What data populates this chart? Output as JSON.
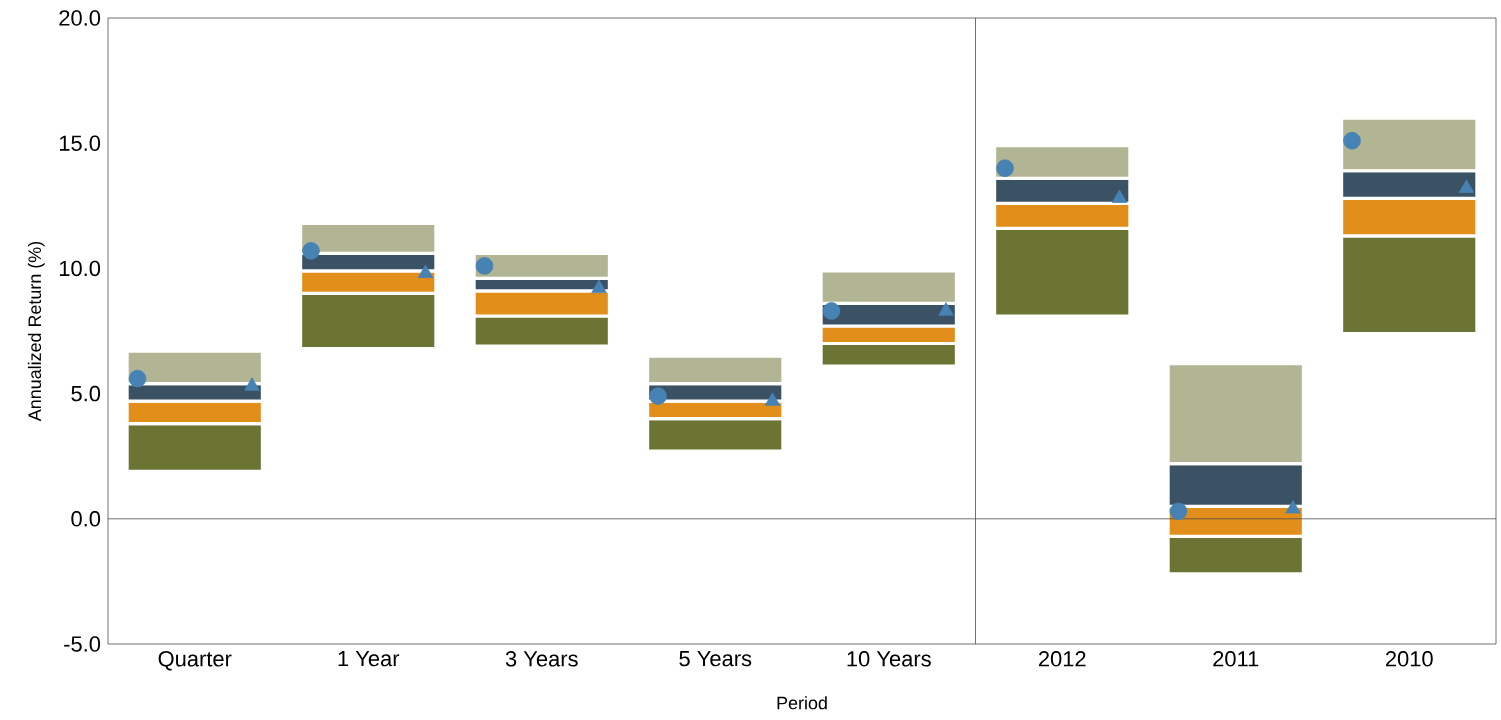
{
  "chart_data": {
    "type": "bar",
    "xlabel": "Period",
    "ylabel": "Annualized Return (%)",
    "categories": [
      "Quarter",
      "1 Year",
      "3 Years",
      "5 Years",
      "10 Years",
      "2012",
      "2011",
      "2010"
    ],
    "series": [
      {
        "color": "#6b7433",
        "base": [
          1.9,
          6.8,
          6.9,
          2.7,
          6.1,
          8.1,
          -2.2,
          7.4
        ],
        "values": [
          1.9,
          2.2,
          1.2,
          1.3,
          0.9,
          3.5,
          1.5,
          3.9
        ]
      },
      {
        "color": "#e28e1a",
        "base": [
          3.8,
          9.0,
          8.1,
          4.0,
          7.0,
          11.6,
          -0.7,
          11.3
        ],
        "values": [
          0.9,
          0.9,
          1.0,
          0.7,
          0.7,
          1.0,
          1.2,
          1.5
        ]
      },
      {
        "color": "#3b5264",
        "base": [
          4.7,
          9.9,
          9.1,
          4.7,
          7.7,
          12.6,
          0.5,
          12.8
        ],
        "values": [
          0.7,
          0.7,
          0.5,
          0.7,
          0.9,
          1.0,
          1.7,
          1.1
        ]
      },
      {
        "color": "#b2b593",
        "base": [
          5.4,
          10.6,
          9.6,
          5.4,
          8.6,
          13.6,
          2.2,
          13.9
        ],
        "values": [
          1.3,
          1.2,
          1.0,
          1.1,
          1.3,
          1.3,
          4.0,
          2.1
        ]
      },
      {
        "type": "scatter",
        "marker": "circle",
        "color": "#4682b4",
        "values": [
          5.6,
          10.7,
          10.1,
          4.9,
          8.3,
          14.0,
          0.3,
          15.1
        ]
      },
      {
        "type": "scatter",
        "marker": "triangle",
        "color": "#4682b4",
        "values": [
          5.3,
          9.8,
          9.2,
          4.7,
          8.3,
          12.8,
          0.4,
          13.2
        ]
      }
    ],
    "ylim": [
      -5,
      20
    ],
    "yticks": [
      {
        "value": -5,
        "label": "-5.0"
      },
      {
        "value": 0,
        "label": "0.0"
      },
      {
        "value": 5,
        "label": "5.0"
      },
      {
        "value": 10,
        "label": "10.0"
      },
      {
        "value": 15,
        "label": "15.0"
      },
      {
        "value": 20,
        "label": "20.0"
      }
    ],
    "ref_lines": [
      {
        "axis": "y",
        "value": 0
      }
    ],
    "grid": false
  }
}
